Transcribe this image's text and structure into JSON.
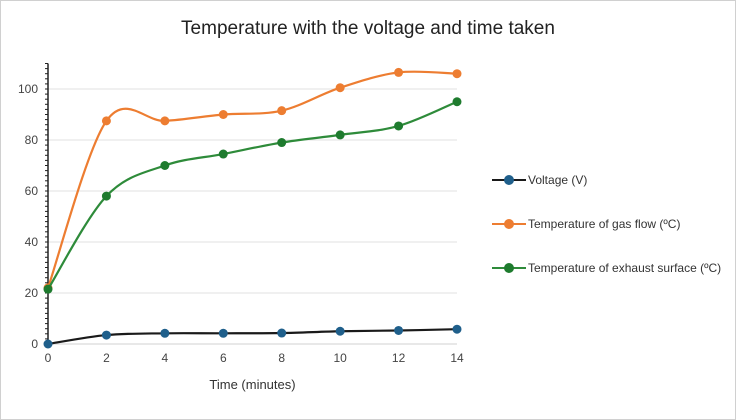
{
  "chart_data": {
    "type": "line",
    "title": "Temperature with the voltage and time taken",
    "xlabel": "Time (minutes)",
    "ylabel": "",
    "x": [
      0,
      2,
      4,
      6,
      8,
      10,
      12,
      14
    ],
    "xticks": [
      "0",
      "2",
      "4",
      "6",
      "8",
      "10",
      "12",
      "14"
    ],
    "yticks": [
      "0",
      "20",
      "40",
      "60",
      "80",
      "100"
    ],
    "xlim": [
      0,
      14
    ],
    "ylim": [
      0,
      110
    ],
    "grid": true,
    "legend_placement": "right",
    "series": [
      {
        "name": "Voltage (V)",
        "color": "#1f5f8b",
        "line_color": "#1a1a1a",
        "values": [
          0,
          3.5,
          4.2,
          4.2,
          4.3,
          5.0,
          5.3,
          5.8
        ]
      },
      {
        "name": "Temperature of gas flow (ºC)",
        "color": "#ed7d31",
        "line_color": "#ed7d31",
        "values": [
          22,
          87.5,
          87.5,
          90,
          91.5,
          100.5,
          106.5,
          106
        ]
      },
      {
        "name": "Temperature of exhaust surface (ºC)",
        "color": "#1e7b2e",
        "line_color": "#2e8b3a",
        "values": [
          21.5,
          58,
          70,
          74.5,
          79,
          82,
          85.5,
          95
        ]
      }
    ]
  }
}
